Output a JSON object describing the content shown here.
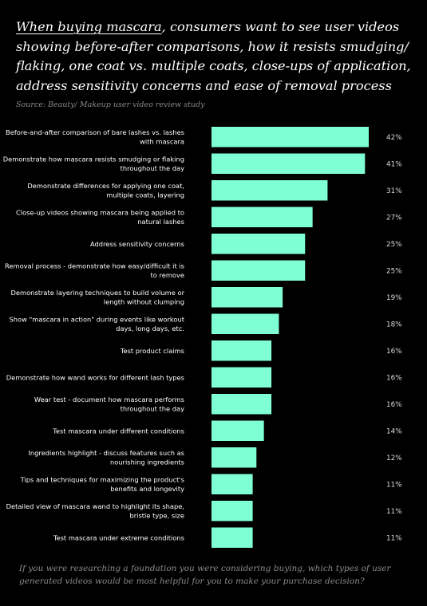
{
  "headline": {
    "highlight": "When buying mascara",
    "rest": ", consumers want to see user videos showing before-after comparisons, how it resists smudging/ flaking, one coat vs. multiple coats, close-ups of application, address sensitivity concerns and ease of removal process"
  },
  "source": "Source: Beauty/ Makeup user video review study",
  "footnote": "If you were researching a foundation you were considering buying, which types of user generated videos would be most helpful for you to make your purchase decision?",
  "colors": {
    "background": "#000000",
    "bar": "#7fffd4",
    "text": "#ffffff",
    "muted": "#8a8a8a"
  },
  "chart_data": {
    "type": "bar",
    "orientation": "horizontal",
    "categories": [
      [
        "Before-and-after comparison of bare lashes vs. lashes",
        "with mascara"
      ],
      [
        "Demonstrate how mascara resists smudging or flaking",
        "throughout the day"
      ],
      [
        "Demonstrate differences for applying one coat,",
        "multiple coats, layering"
      ],
      [
        "Close-up videos showing mascara being applied to",
        "natural lashes"
      ],
      [
        "Address sensitivity concerns"
      ],
      [
        "Removal process - demonstrate how easy/difficult it is",
        "to remove"
      ],
      [
        "Demonstrate layering techniques to build volume or",
        "length without clumping"
      ],
      [
        "Show \"mascara in action\" during events like workout",
        "days, long days, etc."
      ],
      [
        "Test product claims"
      ],
      [
        "Demonstrate how wand works for different lash types"
      ],
      [
        "Wear test - document how mascara performs",
        "throughout the day"
      ],
      [
        "Test mascara under different conditions"
      ],
      [
        "Ingredients highlight - discuss features such as",
        "nourishing ingredients"
      ],
      [
        "Tips and techniques for maximizing the product's",
        "benefits and longevity"
      ],
      [
        "Detailed view of mascara wand to highlight its shape,",
        "bristle type, size"
      ],
      [
        "Test mascara under extreme conditions"
      ]
    ],
    "values": [
      42,
      41,
      31,
      27,
      25,
      25,
      19,
      18,
      16,
      16,
      16,
      14,
      12,
      11,
      11,
      11
    ],
    "value_suffix": "%",
    "xlim": [
      0,
      42
    ],
    "grid": false,
    "legend": "none"
  }
}
